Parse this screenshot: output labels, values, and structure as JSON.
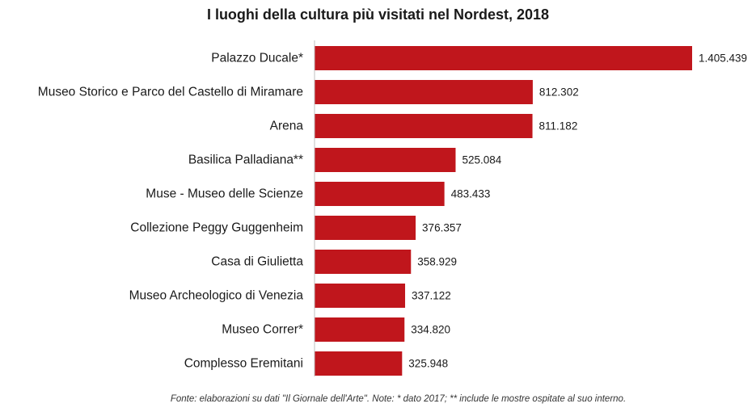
{
  "chart_data": {
    "type": "bar",
    "orientation": "horizontal",
    "title": "I luoghi della cultura più visitati nel Nordest, 2018",
    "categories": [
      "Palazzo Ducale*",
      "Museo Storico e Parco del Castello di Miramare",
      "Arena",
      "Basilica Palladiana**",
      "Muse - Museo delle Scienze",
      "Collezione Peggy Guggenheim",
      "Casa di Giulietta",
      "Museo Archeologico di Venezia",
      "Museo Correr*",
      "Complesso Eremitani"
    ],
    "values": [
      1405439,
      812302,
      811182,
      525084,
      483433,
      376357,
      358929,
      337122,
      334820,
      325948
    ],
    "value_labels": [
      "1.405.439",
      "812.302",
      "811.182",
      "525.084",
      "483.433",
      "376.357",
      "358.929",
      "337.122",
      "334.820",
      "325.948"
    ],
    "bar_color": "#C0161C",
    "grid": false,
    "legend": "none",
    "note": "Fonte: elaborazioni su dati \"Il Giornale dell'Arte\".  Note: * dato 2017; ** include le mostre ospitate al suo interno."
  }
}
